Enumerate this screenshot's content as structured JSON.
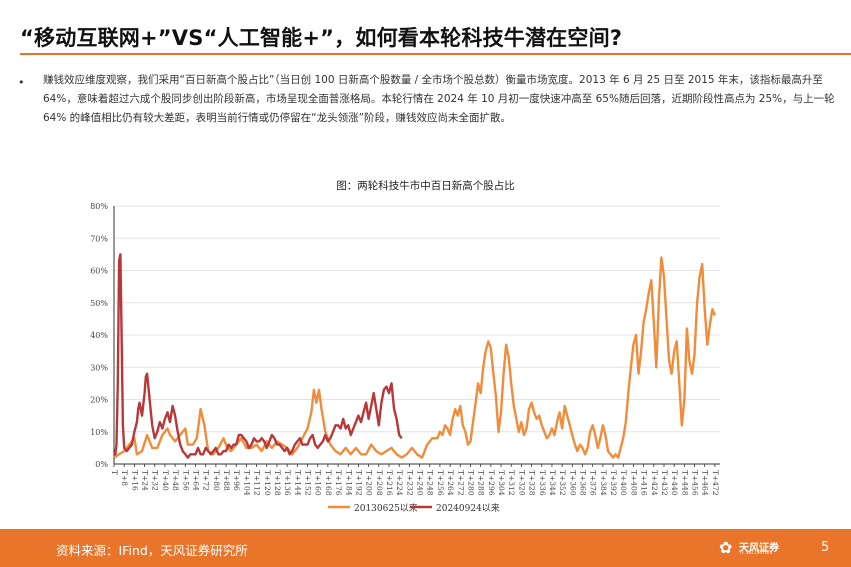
{
  "header": {
    "title": "“移动互联网+”VS“人工智能+”，如何看本轮科技牛潜在空间?"
  },
  "body": {
    "bullet": "•",
    "paragraph": "赚钱效应维度观察，我们采用“百日新高个股占比”（当日创  100 日新高个股数量 / 全市场个股总数）衡量市场宽度。2013  年 6 月 25 日至 2015 年末，该指标最高升至 64%，意味着超过六成个股同步创出阶段新高，市场呈现全面普涨格局。本轮行情在  2024 年 10 月初一度快速冲高至  65%随后回落，近期阶段性高点为 25%，与上一轮 64% 的峰值相比仍有较大差距，表明当前行情或仍停留在“龙头领涨”阶段，赚钱效应尚未全面扩散。"
  },
  "chart": {
    "title": "图：两轮科技牛市中百日新高个股占比",
    "legend": [
      "20130625以来",
      "20240924以来"
    ],
    "colors": {
      "series1": "#f08c3c",
      "series2": "#b8383a",
      "axis": "#333333",
      "grid": "#e4e4e4"
    }
  },
  "chart_data": {
    "type": "line",
    "title": "图：两轮科技牛市中百日新高个股占比",
    "xlabel": "",
    "ylabel": "",
    "ylim": [
      0,
      0.8
    ],
    "y_ticks": [
      "0%",
      "10%",
      "20%",
      "30%",
      "40%",
      "50%",
      "60%",
      "70%",
      "80%"
    ],
    "x_ticks": [
      "T",
      "T+8",
      "T+16",
      "T+24",
      "T+32",
      "T+40",
      "T+48",
      "T+56",
      "T+64",
      "T+72",
      "T+80",
      "T+88",
      "T+96",
      "T+104",
      "T+112",
      "T+120",
      "T+128",
      "T+136",
      "T+144",
      "T+152",
      "T+160",
      "T+168",
      "T+176",
      "T+184",
      "T+192",
      "T+200",
      "T+208",
      "T+216",
      "T+224",
      "T+232",
      "T+240",
      "T+248",
      "T+256",
      "T+264",
      "T+272",
      "T+280",
      "T+288",
      "T+296",
      "T+304",
      "T+312",
      "T+320",
      "T+328",
      "T+336",
      "T+344",
      "T+352",
      "T+360",
      "T+368",
      "T+376",
      "T+384",
      "T+392",
      "T+400",
      "T+408",
      "T+416",
      "T+424",
      "T+432",
      "T+440",
      "T+448",
      "T+456",
      "T+464",
      "T+472"
    ],
    "grid": true,
    "legend_position": "bottom",
    "series": [
      {
        "name": "20130625以来",
        "points": [
          [
            0,
            0.02
          ],
          [
            4,
            0.03
          ],
          [
            8,
            0.04
          ],
          [
            12,
            0.06
          ],
          [
            16,
            0.08
          ],
          [
            18,
            0.03
          ],
          [
            22,
            0.04
          ],
          [
            26,
            0.09
          ],
          [
            28,
            0.07
          ],
          [
            30,
            0.05
          ],
          [
            34,
            0.05
          ],
          [
            38,
            0.09
          ],
          [
            42,
            0.11
          ],
          [
            44,
            0.09
          ],
          [
            48,
            0.07
          ],
          [
            52,
            0.09
          ],
          [
            56,
            0.11
          ],
          [
            58,
            0.06
          ],
          [
            62,
            0.06
          ],
          [
            65,
            0.08
          ],
          [
            68,
            0.17
          ],
          [
            71,
            0.12
          ],
          [
            74,
            0.04
          ],
          [
            78,
            0.03
          ],
          [
            82,
            0.05
          ],
          [
            86,
            0.08
          ],
          [
            89,
            0.05
          ],
          [
            92,
            0.04
          ],
          [
            96,
            0.06
          ],
          [
            100,
            0.08
          ],
          [
            104,
            0.05
          ],
          [
            108,
            0.05
          ],
          [
            112,
            0.06
          ],
          [
            116,
            0.04
          ],
          [
            120,
            0.07
          ],
          [
            124,
            0.05
          ],
          [
            128,
            0.07
          ],
          [
            132,
            0.06
          ],
          [
            136,
            0.05
          ],
          [
            140,
            0.03
          ],
          [
            144,
            0.05
          ],
          [
            148,
            0.08
          ],
          [
            152,
            0.11
          ],
          [
            155,
            0.16
          ],
          [
            157,
            0.23
          ],
          [
            159,
            0.19
          ],
          [
            161,
            0.23
          ],
          [
            163,
            0.17
          ],
          [
            166,
            0.1
          ],
          [
            170,
            0.06
          ],
          [
            174,
            0.04
          ],
          [
            178,
            0.03
          ],
          [
            182,
            0.05
          ],
          [
            186,
            0.03
          ],
          [
            190,
            0.05
          ],
          [
            194,
            0.03
          ],
          [
            198,
            0.03
          ],
          [
            202,
            0.06
          ],
          [
            206,
            0.04
          ],
          [
            210,
            0.03
          ],
          [
            214,
            0.04
          ],
          [
            218,
            0.05
          ],
          [
            222,
            0.03
          ],
          [
            226,
            0.02
          ],
          [
            230,
            0.03
          ],
          [
            234,
            0.05
          ],
          [
            238,
            0.03
          ],
          [
            242,
            0.02
          ],
          [
            246,
            0.06
          ],
          [
            250,
            0.08
          ],
          [
            254,
            0.08
          ],
          [
            256,
            0.1
          ],
          [
            258,
            0.09
          ],
          [
            260,
            0.12
          ],
          [
            262,
            0.11
          ],
          [
            264,
            0.09
          ],
          [
            266,
            0.14
          ],
          [
            268,
            0.17
          ],
          [
            270,
            0.15
          ],
          [
            272,
            0.18
          ],
          [
            274,
            0.12
          ],
          [
            276,
            0.1
          ],
          [
            278,
            0.06
          ],
          [
            280,
            0.07
          ],
          [
            282,
            0.13
          ],
          [
            284,
            0.19
          ],
          [
            286,
            0.25
          ],
          [
            288,
            0.22
          ],
          [
            290,
            0.3
          ],
          [
            292,
            0.35
          ],
          [
            294,
            0.38
          ],
          [
            296,
            0.36
          ],
          [
            298,
            0.28
          ],
          [
            300,
            0.21
          ],
          [
            302,
            0.1
          ],
          [
            304,
            0.16
          ],
          [
            306,
            0.28
          ],
          [
            308,
            0.37
          ],
          [
            310,
            0.33
          ],
          [
            312,
            0.25
          ],
          [
            314,
            0.18
          ],
          [
            316,
            0.14
          ],
          [
            318,
            0.1
          ],
          [
            320,
            0.13
          ],
          [
            322,
            0.09
          ],
          [
            324,
            0.11
          ],
          [
            326,
            0.17
          ],
          [
            328,
            0.19
          ],
          [
            330,
            0.16
          ],
          [
            332,
            0.14
          ],
          [
            334,
            0.15
          ],
          [
            336,
            0.12
          ],
          [
            338,
            0.1
          ],
          [
            340,
            0.08
          ],
          [
            342,
            0.09
          ],
          [
            344,
            0.11
          ],
          [
            346,
            0.09
          ],
          [
            348,
            0.13
          ],
          [
            350,
            0.16
          ],
          [
            352,
            0.11
          ],
          [
            354,
            0.18
          ],
          [
            356,
            0.15
          ],
          [
            358,
            0.12
          ],
          [
            360,
            0.09
          ],
          [
            362,
            0.06
          ],
          [
            364,
            0.04
          ],
          [
            366,
            0.06
          ],
          [
            368,
            0.05
          ],
          [
            370,
            0.03
          ],
          [
            372,
            0.05
          ],
          [
            374,
            0.1
          ],
          [
            376,
            0.12
          ],
          [
            378,
            0.09
          ],
          [
            380,
            0.05
          ],
          [
            382,
            0.08
          ],
          [
            384,
            0.12
          ],
          [
            386,
            0.09
          ],
          [
            388,
            0.04
          ],
          [
            390,
            0.03
          ],
          [
            392,
            0.02
          ],
          [
            394,
            0.03
          ],
          [
            396,
            0.02
          ],
          [
            398,
            0.05
          ],
          [
            400,
            0.08
          ],
          [
            402,
            0.13
          ],
          [
            404,
            0.22
          ],
          [
            406,
            0.3
          ],
          [
            408,
            0.37
          ],
          [
            410,
            0.4
          ],
          [
            412,
            0.28
          ],
          [
            414,
            0.35
          ],
          [
            416,
            0.44
          ],
          [
            418,
            0.48
          ],
          [
            420,
            0.53
          ],
          [
            422,
            0.57
          ],
          [
            424,
            0.44
          ],
          [
            426,
            0.3
          ],
          [
            428,
            0.51
          ],
          [
            430,
            0.64
          ],
          [
            432,
            0.58
          ],
          [
            434,
            0.45
          ],
          [
            436,
            0.32
          ],
          [
            438,
            0.28
          ],
          [
            440,
            0.35
          ],
          [
            442,
            0.38
          ],
          [
            444,
            0.25
          ],
          [
            446,
            0.12
          ],
          [
            448,
            0.2
          ],
          [
            450,
            0.42
          ],
          [
            452,
            0.32
          ],
          [
            454,
            0.28
          ],
          [
            456,
            0.34
          ],
          [
            458,
            0.5
          ],
          [
            460,
            0.58
          ],
          [
            462,
            0.62
          ],
          [
            464,
            0.48
          ],
          [
            466,
            0.37
          ],
          [
            468,
            0.43
          ],
          [
            470,
            0.48
          ],
          [
            472,
            0.46
          ]
        ]
      },
      {
        "name": "20240924以来",
        "points": [
          [
            0,
            0.04
          ],
          [
            1,
            0.03
          ],
          [
            2,
            0.06
          ],
          [
            3,
            0.25
          ],
          [
            4,
            0.63
          ],
          [
            5,
            0.65
          ],
          [
            6,
            0.4
          ],
          [
            7,
            0.12
          ],
          [
            8,
            0.05
          ],
          [
            10,
            0.04
          ],
          [
            12,
            0.05
          ],
          [
            14,
            0.06
          ],
          [
            16,
            0.1
          ],
          [
            18,
            0.13
          ],
          [
            19,
            0.17
          ],
          [
            20,
            0.19
          ],
          [
            22,
            0.15
          ],
          [
            24,
            0.22
          ],
          [
            25,
            0.27
          ],
          [
            26,
            0.28
          ],
          [
            28,
            0.2
          ],
          [
            30,
            0.12
          ],
          [
            32,
            0.08
          ],
          [
            34,
            0.1
          ],
          [
            36,
            0.13
          ],
          [
            38,
            0.11
          ],
          [
            40,
            0.14
          ],
          [
            42,
            0.16
          ],
          [
            44,
            0.13
          ],
          [
            46,
            0.18
          ],
          [
            48,
            0.15
          ],
          [
            50,
            0.1
          ],
          [
            52,
            0.06
          ],
          [
            54,
            0.04
          ],
          [
            56,
            0.03
          ],
          [
            58,
            0.02
          ],
          [
            60,
            0.03
          ],
          [
            62,
            0.03
          ],
          [
            64,
            0.03
          ],
          [
            66,
            0.05
          ],
          [
            68,
            0.03
          ],
          [
            70,
            0.03
          ],
          [
            72,
            0.05
          ],
          [
            74,
            0.04
          ],
          [
            76,
            0.03
          ],
          [
            78,
            0.04
          ],
          [
            80,
            0.05
          ],
          [
            82,
            0.03
          ],
          [
            84,
            0.03
          ],
          [
            86,
            0.04
          ],
          [
            88,
            0.04
          ],
          [
            90,
            0.06
          ],
          [
            92,
            0.05
          ],
          [
            94,
            0.06
          ],
          [
            96,
            0.06
          ],
          [
            98,
            0.09
          ],
          [
            100,
            0.09
          ],
          [
            102,
            0.08
          ],
          [
            104,
            0.07
          ],
          [
            106,
            0.05
          ],
          [
            108,
            0.06
          ],
          [
            110,
            0.08
          ],
          [
            112,
            0.07
          ],
          [
            114,
            0.07
          ],
          [
            116,
            0.08
          ],
          [
            118,
            0.07
          ],
          [
            120,
            0.05
          ],
          [
            122,
            0.07
          ],
          [
            124,
            0.09
          ],
          [
            126,
            0.08
          ],
          [
            128,
            0.06
          ],
          [
            130,
            0.06
          ],
          [
            132,
            0.05
          ],
          [
            134,
            0.04
          ],
          [
            136,
            0.05
          ],
          [
            138,
            0.03
          ],
          [
            140,
            0.04
          ],
          [
            142,
            0.06
          ],
          [
            144,
            0.07
          ],
          [
            146,
            0.08
          ],
          [
            148,
            0.06
          ],
          [
            150,
            0.06
          ],
          [
            152,
            0.06
          ],
          [
            154,
            0.08
          ],
          [
            156,
            0.09
          ],
          [
            158,
            0.06
          ],
          [
            160,
            0.05
          ],
          [
            162,
            0.06
          ],
          [
            164,
            0.07
          ],
          [
            166,
            0.09
          ],
          [
            168,
            0.07
          ],
          [
            170,
            0.08
          ],
          [
            172,
            0.1
          ],
          [
            174,
            0.12
          ],
          [
            176,
            0.12
          ],
          [
            178,
            0.11
          ],
          [
            180,
            0.14
          ],
          [
            182,
            0.11
          ],
          [
            184,
            0.12
          ],
          [
            186,
            0.09
          ],
          [
            188,
            0.11
          ],
          [
            190,
            0.13
          ],
          [
            192,
            0.15
          ],
          [
            194,
            0.13
          ],
          [
            196,
            0.16
          ],
          [
            198,
            0.19
          ],
          [
            200,
            0.14
          ],
          [
            202,
            0.18
          ],
          [
            204,
            0.22
          ],
          [
            206,
            0.17
          ],
          [
            208,
            0.12
          ],
          [
            210,
            0.19
          ],
          [
            212,
            0.23
          ],
          [
            214,
            0.24
          ],
          [
            216,
            0.22
          ],
          [
            218,
            0.25
          ],
          [
            220,
            0.17
          ],
          [
            222,
            0.14
          ],
          [
            224,
            0.09
          ],
          [
            226,
            0.08
          ]
        ]
      }
    ]
  },
  "footer": {
    "source": "资料来源：IFind，天风证券研究所",
    "logo_mark": "✿",
    "logo_name": "天风证券",
    "logo_sub": "TF SECURITIES",
    "page": "5"
  }
}
